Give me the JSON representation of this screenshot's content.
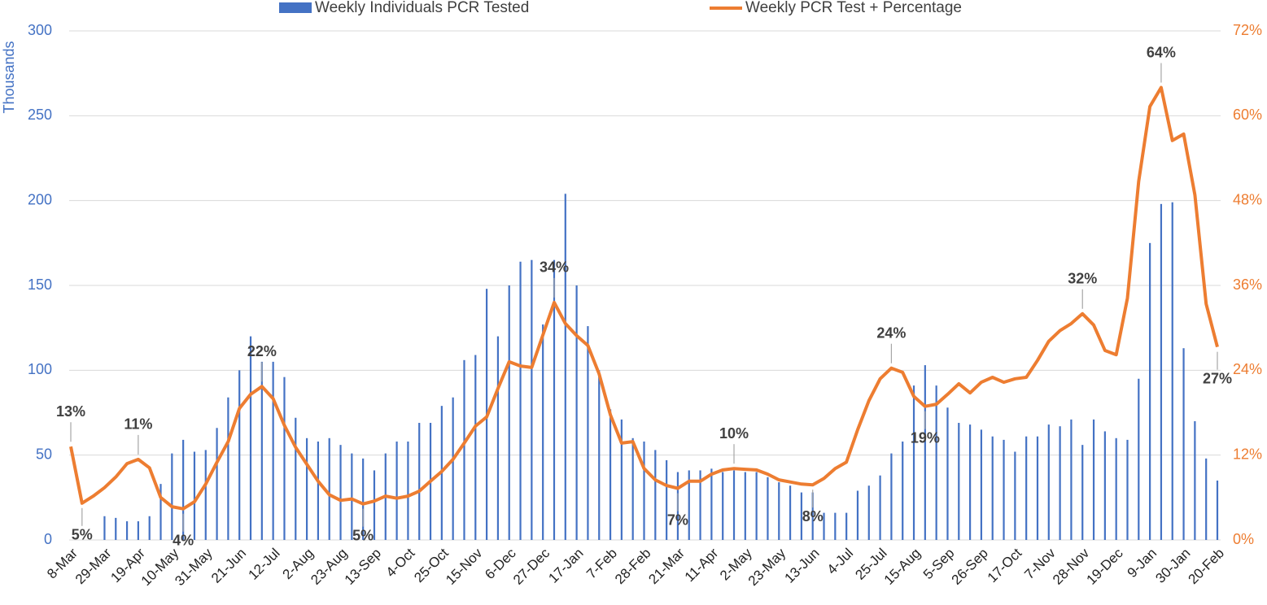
{
  "chart_data": {
    "type": "combo",
    "y_title": "Thousands",
    "categories": [
      "8-Mar",
      null,
      null,
      "29-Mar",
      null,
      null,
      "19-Apr",
      null,
      null,
      "10-May",
      null,
      null,
      "31-May",
      null,
      null,
      "21-Jun",
      null,
      null,
      "12-Jul",
      null,
      null,
      "2-Aug",
      null,
      null,
      "23-Aug",
      null,
      null,
      "13-Sep",
      null,
      null,
      "4-Oct",
      null,
      null,
      "25-Oct",
      null,
      null,
      "15-Nov",
      null,
      null,
      "6-Dec",
      null,
      null,
      "27-Dec",
      null,
      null,
      "17-Jan",
      null,
      null,
      "7-Feb",
      null,
      null,
      "28-Feb",
      null,
      null,
      "21-Mar",
      null,
      null,
      "11-Apr",
      null,
      null,
      "2-May",
      null,
      null,
      "23-May",
      null,
      null,
      "13-Jun",
      null,
      null,
      "4-Jul",
      null,
      null,
      "25-Jul",
      null,
      null,
      "15-Aug",
      null,
      null,
      "5-Sep",
      null,
      null,
      "26-Sep",
      null,
      null,
      "17-Oct",
      null,
      null,
      "7-Nov",
      null,
      null,
      "28-Nov",
      null,
      null,
      "19-Dec",
      null,
      null,
      "9-Jan",
      null,
      null,
      "30-Jan",
      null,
      null,
      "20-Feb"
    ],
    "series": [
      {
        "name": "Weekly Individuals PCR Tested",
        "type": "bar",
        "color": "#4472c4",
        "values": [
          null,
          null,
          null,
          14,
          13,
          11,
          11,
          14,
          33,
          51,
          59,
          52,
          53,
          66,
          84,
          100,
          120,
          105,
          105,
          96,
          72,
          60,
          58,
          60,
          56,
          51,
          48,
          41,
          51,
          58,
          58,
          69,
          69,
          79,
          84,
          106,
          109,
          148,
          120,
          150,
          164,
          165,
          127,
          165,
          204,
          150,
          126,
          100,
          77,
          71,
          60,
          58,
          53,
          47,
          40,
          41,
          41,
          42,
          40,
          41,
          40,
          40,
          37,
          34,
          32,
          28,
          28,
          16,
          16,
          16,
          29,
          32,
          38,
          51,
          58,
          91,
          103,
          91,
          78,
          69,
          68,
          65,
          61,
          59,
          52,
          61,
          61,
          68,
          67,
          71,
          56,
          71,
          64,
          60,
          59,
          95,
          175,
          198,
          199,
          113,
          70,
          48,
          35
        ]
      },
      {
        "name": "Weekly PCR Test + Percentage",
        "type": "line",
        "color": "#ed7d31",
        "axis": "y2",
        "values": [
          13.2,
          5.2,
          6.2,
          7.4,
          8.9,
          10.8,
          11.4,
          10.2,
          6,
          4.7,
          4.4,
          5.4,
          7.9,
          11,
          13.9,
          18.6,
          20.6,
          21.7,
          20,
          16.2,
          13.1,
          10.7,
          8.3,
          6.4,
          5.6,
          5.8,
          5.1,
          5.5,
          6.2,
          5.9,
          6.2,
          6.9,
          8.3,
          9.7,
          11.4,
          13.7,
          16.1,
          17.4,
          21.4,
          25.2,
          24.6,
          24.4,
          29,
          33.6,
          30.6,
          28.9,
          27.5,
          23.5,
          17.7,
          13.7,
          13.9,
          10.1,
          8.5,
          7.7,
          7.3,
          8.3,
          8.3,
          9.3,
          9.9,
          10.1,
          10,
          9.9,
          9.3,
          8.5,
          8.2,
          7.9,
          7.8,
          8.7,
          10.1,
          11,
          15.6,
          19.7,
          22.8,
          24.3,
          23.7,
          20.3,
          18.9,
          19.2,
          20.6,
          22.1,
          20.8,
          22.3,
          23,
          22.3,
          22.8,
          23,
          25.4,
          28.1,
          29.6,
          30.6,
          32,
          30.4,
          26.8,
          26.2,
          34.2,
          50.7,
          61.3,
          64,
          56.5,
          57.4,
          48.8,
          33.4,
          27.3
        ],
        "value_labels": [
          "13%",
          "5%",
          null,
          null,
          null,
          null,
          "11%",
          null,
          null,
          null,
          "4%",
          null,
          null,
          null,
          null,
          null,
          null,
          "22%",
          null,
          null,
          null,
          null,
          null,
          null,
          null,
          null,
          "5%",
          null,
          null,
          null,
          null,
          null,
          null,
          null,
          null,
          null,
          null,
          null,
          null,
          null,
          null,
          null,
          null,
          "34%",
          null,
          null,
          null,
          null,
          null,
          null,
          null,
          null,
          null,
          null,
          "7%",
          null,
          null,
          null,
          null,
          "10%",
          null,
          null,
          null,
          null,
          null,
          null,
          "8%",
          null,
          null,
          null,
          null,
          null,
          null,
          "24%",
          null,
          null,
          "19%",
          null,
          null,
          null,
          null,
          null,
          null,
          null,
          null,
          null,
          null,
          null,
          null,
          null,
          "32%",
          null,
          null,
          null,
          null,
          null,
          null,
          "64%",
          null,
          null,
          null,
          null,
          "27%"
        ]
      }
    ],
    "ylim": [
      0,
      300
    ],
    "yticks": [
      0,
      50,
      100,
      150,
      200,
      250,
      300
    ],
    "y2lim": [
      0,
      72
    ],
    "y2ticks": [
      {
        "value": 0,
        "label": "0%"
      },
      {
        "value": 12,
        "label": "12%"
      },
      {
        "value": 24,
        "label": "24%"
      },
      {
        "value": 36,
        "label": "36%"
      },
      {
        "value": 48,
        "label": "48%"
      },
      {
        "value": 60,
        "label": "60%"
      },
      {
        "value": 72,
        "label": "72%"
      }
    ],
    "grid": true,
    "legend": "top"
  }
}
